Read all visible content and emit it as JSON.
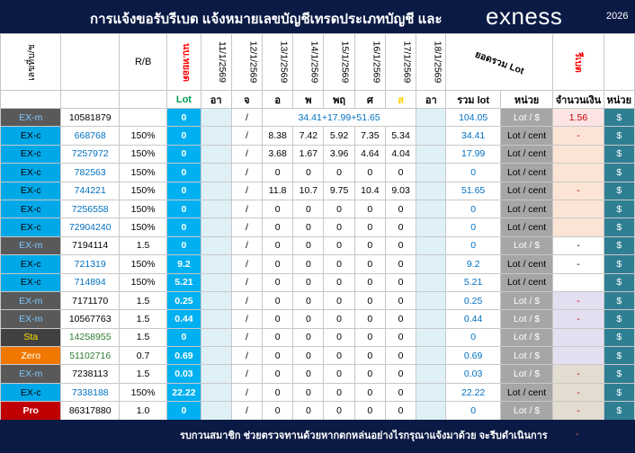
{
  "title": "การแจ้งขอรับรีเบต  แจ้งหมายเลขบัญชีเทรดประเภทบัญชี และ",
  "logo": "exness",
  "year": "2026",
  "headers": {
    "account_no": "เลขที่บ/ช",
    "rb": "R/B",
    "lot_total": "นบ.ทยอด",
    "dates": [
      "11/1/2569",
      "12/1/2569",
      "13/1/2569",
      "14/1/2569",
      "15/1/2569",
      "16/1/2569",
      "17/1/2569",
      "18/1/2569"
    ],
    "sum_lot": "ยอดรวม Lot",
    "rebate": "รีเบต"
  },
  "subheaders": {
    "lot": "Lot",
    "days": [
      "อา",
      "จ",
      "อ",
      "พ",
      "พฤ",
      "ศ",
      "ส",
      "อา"
    ],
    "sum_lot": "รวม lot",
    "unit": "หน่วย",
    "amount": "จำนวนเงิน",
    "unit2": "หน่วย"
  },
  "rows": [
    {
      "type": "EX-m",
      "acct": "10581879",
      "rb": "",
      "lot": "0",
      "slash": "/",
      "formula": "34.41+17.99+51.65",
      "days": [],
      "sum": "104.05",
      "unit": "Lot / $",
      "amount": "1.56",
      "cur": "$"
    },
    {
      "type": "EX-c",
      "acct": "668768",
      "rb": "150%",
      "lot": "0",
      "slash": "/",
      "formula": "",
      "days": [
        "8.38",
        "7.42",
        "5.92",
        "7.35",
        "5.34"
      ],
      "sum": "34.41",
      "unit": "Lot / cent",
      "amount": "-",
      "cur": "$"
    },
    {
      "type": "EX-c",
      "acct": "7257972",
      "rb": "150%",
      "lot": "0",
      "slash": "/",
      "formula": "",
      "days": [
        "3.68",
        "1.67",
        "3.96",
        "4.64",
        "4.04"
      ],
      "sum": "17.99",
      "unit": "Lot / cent",
      "amount": "",
      "cur": "$"
    },
    {
      "type": "EX-c",
      "acct": "782563",
      "rb": "150%",
      "lot": "0",
      "slash": "/",
      "formula": "",
      "days": [
        "0",
        "0",
        "0",
        "0",
        "0"
      ],
      "sum": "0",
      "unit": "Lot / cent",
      "amount": "",
      "cur": "$"
    },
    {
      "type": "EX-c",
      "acct": "744221",
      "rb": "150%",
      "lot": "0",
      "slash": "/",
      "formula": "",
      "days": [
        "11.8",
        "10.7",
        "9.75",
        "10.4",
        "9.03"
      ],
      "sum": "51.65",
      "unit": "Lot / cent",
      "amount": "-",
      "cur": "$"
    },
    {
      "type": "EX-c",
      "acct": "7256558",
      "rb": "150%",
      "lot": "0",
      "slash": "/",
      "formula": "",
      "days": [
        "0",
        "0",
        "0",
        "0",
        "0"
      ],
      "sum": "0",
      "unit": "Lot / cent",
      "amount": "",
      "cur": "$"
    },
    {
      "type": "EX-c",
      "acct": "72904240",
      "rb": "150%",
      "lot": "0",
      "slash": "/",
      "formula": "",
      "days": [
        "0",
        "0",
        "0",
        "0",
        "0"
      ],
      "sum": "0",
      "unit": "Lot / cent",
      "amount": "",
      "cur": "$"
    },
    {
      "type": "EX-m",
      "acct": "7194114",
      "rb": "1.5",
      "lot": "0",
      "slash": "/",
      "formula": "",
      "days": [
        "0",
        "0",
        "0",
        "0",
        "0"
      ],
      "sum": "0",
      "unit": "Lot / $",
      "amount": "-",
      "cur": "$"
    },
    {
      "type": "EX-c",
      "acct": "721319",
      "rb": "150%",
      "lot": "9.2",
      "slash": "/",
      "formula": "",
      "days": [
        "0",
        "0",
        "0",
        "0",
        "0"
      ],
      "sum": "9.2",
      "unit": "Lot / cent",
      "amount": "-",
      "cur": "$"
    },
    {
      "type": "EX-c",
      "acct": "714894",
      "rb": "150%",
      "lot": "5.21",
      "slash": "/",
      "formula": "",
      "days": [
        "0",
        "0",
        "0",
        "0",
        "0"
      ],
      "sum": "5.21",
      "unit": "Lot / cent",
      "amount": "",
      "cur": "$"
    },
    {
      "type": "EX-m",
      "acct": "7171170",
      "rb": "1.5",
      "lot": "0.25",
      "slash": "/",
      "formula": "",
      "days": [
        "0",
        "0",
        "0",
        "0",
        "0"
      ],
      "sum": "0.25",
      "unit": "Lot / $",
      "amount": "-",
      "cur": "$"
    },
    {
      "type": "EX-m",
      "acct": "10567763",
      "rb": "1.5",
      "lot": "0.44",
      "slash": "/",
      "formula": "",
      "days": [
        "0",
        "0",
        "0",
        "0",
        "0"
      ],
      "sum": "0.44",
      "unit": "Lot / $",
      "amount": "-",
      "cur": "$"
    },
    {
      "type": "Sta",
      "acct": "14258955",
      "rb": "1.5",
      "lot": "0",
      "slash": "/",
      "formula": "",
      "days": [
        "0",
        "0",
        "0",
        "0",
        "0"
      ],
      "sum": "0",
      "unit": "Lot / $",
      "amount": "",
      "cur": "$"
    },
    {
      "type": "Zero",
      "acct": "51102716",
      "rb": "0.7",
      "lot": "0.69",
      "slash": "/",
      "formula": "",
      "days": [
        "0",
        "0",
        "0",
        "0",
        "0"
      ],
      "sum": "0.69",
      "unit": "Lot / $",
      "amount": "",
      "cur": "$"
    },
    {
      "type": "EX-m",
      "acct": "7238113",
      "rb": "1.5",
      "lot": "0.03",
      "slash": "/",
      "formula": "",
      "days": [
        "0",
        "0",
        "0",
        "0",
        "0"
      ],
      "sum": "0.03",
      "unit": "Lot / $",
      "amount": "-",
      "cur": "$"
    },
    {
      "type": "EX-c",
      "acct": "7338188",
      "rb": "150%",
      "lot": "22.22",
      "slash": "/",
      "formula": "",
      "days": [
        "0",
        "0",
        "0",
        "0",
        "0"
      ],
      "sum": "22.22",
      "unit": "Lot / cent",
      "amount": "-",
      "cur": "$"
    },
    {
      "type": "Pro",
      "acct": "86317880",
      "rb": "1.0",
      "lot": "0",
      "slash": "/",
      "formula": "",
      "days": [
        "0",
        "0",
        "0",
        "0",
        "0"
      ],
      "sum": "0",
      "unit": "Lot / $",
      "amount": "-",
      "cur": "$"
    }
  ],
  "footer": {
    "text": "รบกวนสมาชิก ช่วยตรวจทานด้วยหากตกหล่นอย่างไรกรุณาแจ้งมาด้วย จะรีบดำเนินการ",
    "dash": "-"
  }
}
